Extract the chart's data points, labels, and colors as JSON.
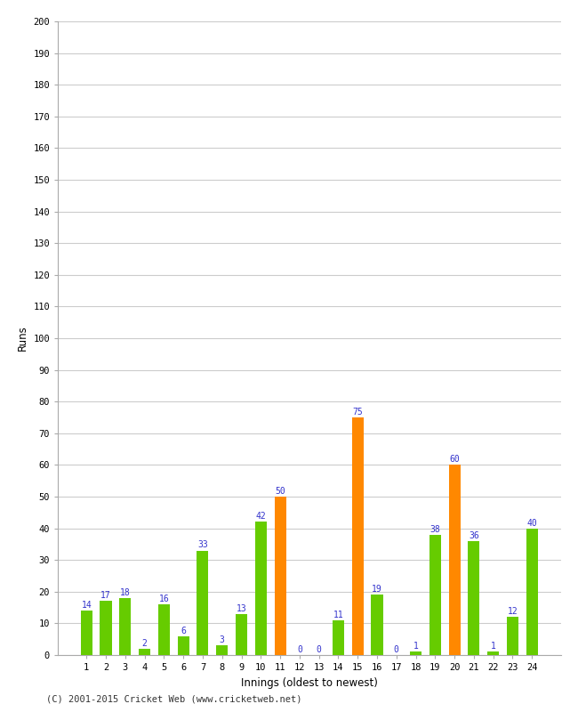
{
  "innings": [
    1,
    2,
    3,
    4,
    5,
    6,
    7,
    8,
    9,
    10,
    11,
    12,
    13,
    14,
    15,
    16,
    17,
    18,
    19,
    20,
    21,
    22,
    23,
    24
  ],
  "runs": [
    14,
    17,
    18,
    2,
    16,
    6,
    33,
    3,
    13,
    42,
    50,
    0,
    0,
    11,
    75,
    19,
    0,
    1,
    38,
    60,
    36,
    1,
    12,
    40
  ],
  "colors": [
    "#66cc00",
    "#66cc00",
    "#66cc00",
    "#66cc00",
    "#66cc00",
    "#66cc00",
    "#66cc00",
    "#66cc00",
    "#66cc00",
    "#66cc00",
    "#ff8800",
    "#66cc00",
    "#66cc00",
    "#66cc00",
    "#ff8800",
    "#66cc00",
    "#66cc00",
    "#66cc00",
    "#66cc00",
    "#ff8800",
    "#66cc00",
    "#66cc00",
    "#66cc00",
    "#66cc00"
  ],
  "xlabel": "Innings (oldest to newest)",
  "ylabel": "Runs",
  "ylim": [
    0,
    200
  ],
  "yticks": [
    0,
    10,
    20,
    30,
    40,
    50,
    60,
    70,
    80,
    90,
    100,
    110,
    120,
    130,
    140,
    150,
    160,
    170,
    180,
    190,
    200
  ],
  "label_color": "#3333cc",
  "background_color": "#ffffff",
  "grid_color": "#cccccc",
  "footer": "(C) 2001-2015 Cricket Web (www.cricketweb.net)",
  "bar_width": 0.6,
  "spine_color": "#aaaaaa"
}
